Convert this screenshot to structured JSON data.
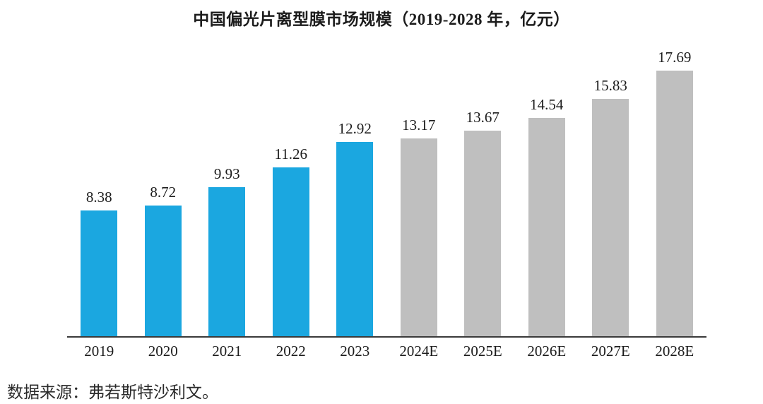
{
  "chart_data": {
    "type": "bar",
    "title": "中国偏光片离型膜市场规模（2019-2028 年，亿元）",
    "categories": [
      "2019",
      "2020",
      "2021",
      "2022",
      "2023",
      "2024E",
      "2025E",
      "2026E",
      "2027E",
      "2028E"
    ],
    "values": [
      8.38,
      8.72,
      9.93,
      11.26,
      12.92,
      13.17,
      13.67,
      14.54,
      15.83,
      17.69
    ],
    "value_labels": [
      "8.38",
      "8.72",
      "9.93",
      "11.26",
      "12.92",
      "13.17",
      "13.67",
      "14.54",
      "15.83",
      "17.69"
    ],
    "bar_colors": [
      "#1BA7E0",
      "#1BA7E0",
      "#1BA7E0",
      "#1BA7E0",
      "#1BA7E0",
      "#BFBFBF",
      "#BFBFBF",
      "#BFBFBF",
      "#BFBFBF",
      "#BFBFBF"
    ],
    "series": [
      {
        "name": "historical-2019-2023",
        "color": "#1BA7E0",
        "values": [
          8.38,
          8.72,
          9.93,
          11.26,
          12.92
        ]
      },
      {
        "name": "forecast-2024E-2028E",
        "color": "#BFBFBF",
        "values": [
          13.17,
          13.67,
          14.54,
          15.83,
          17.69
        ]
      }
    ],
    "xlabel": "",
    "ylabel": "",
    "ylim": [
      0,
      17.69
    ],
    "grid": false,
    "legend": "none",
    "value_labels_position": "above-bars",
    "axis_line_color": "#3a3a3a"
  },
  "footer": {
    "source": "数据来源：弗若斯特沙利文。"
  }
}
